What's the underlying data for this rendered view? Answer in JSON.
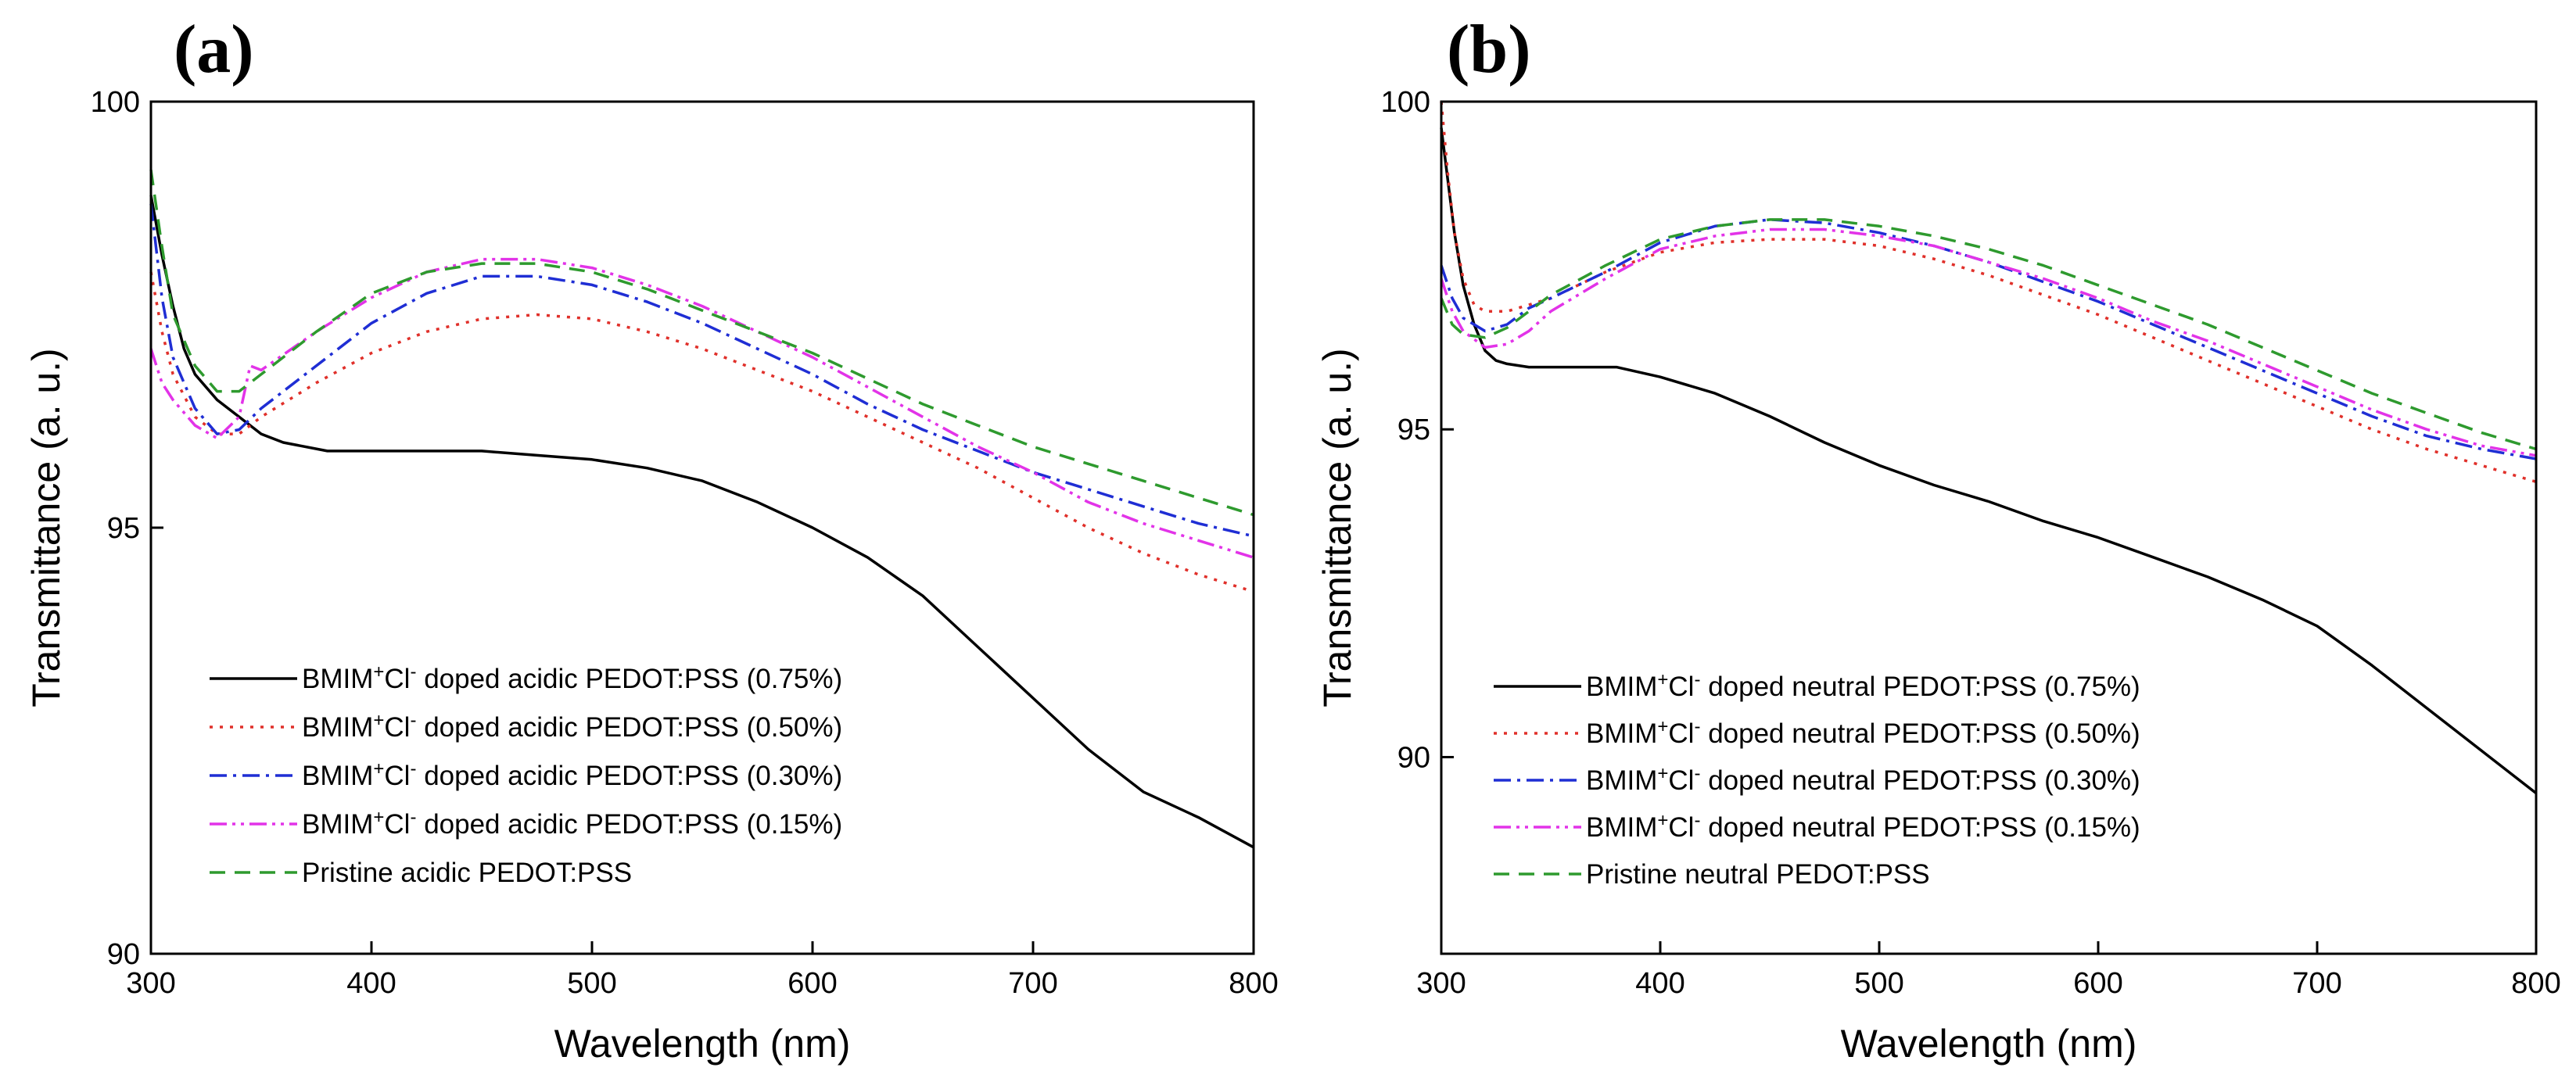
{
  "chart_data": [
    {
      "type": "line",
      "panel_label": "(a)",
      "xlabel": "Wavelength (nm)",
      "ylabel": "Transmittance (a. u.)",
      "xlim": [
        300,
        800
      ],
      "ylim": [
        90,
        100
      ],
      "x_ticks": [
        300,
        400,
        500,
        600,
        700,
        800
      ],
      "y_ticks": [
        90,
        95,
        100
      ],
      "legend_position": "lower-left",
      "series": [
        {
          "name": "BMIM+Cl- doped acidic PEDOT:PSS (0.75%)",
          "legend": {
            "prefix": "BMIM",
            "sup1": "+",
            "mid": "Cl",
            "sup2": "-",
            "suffix": " doped acidic PEDOT:PSS (0.75%)"
          },
          "color": "#000000",
          "dash": "solid",
          "x": [
            300,
            305,
            310,
            315,
            320,
            330,
            340,
            350,
            360,
            380,
            400,
            425,
            450,
            475,
            500,
            525,
            550,
            575,
            600,
            625,
            650,
            675,
            700,
            725,
            750,
            775,
            800
          ],
          "y": [
            98.9,
            98.2,
            97.6,
            97.1,
            96.8,
            96.5,
            96.3,
            96.1,
            96.0,
            95.9,
            95.9,
            95.9,
            95.9,
            95.85,
            95.8,
            95.7,
            95.55,
            95.3,
            95.0,
            94.65,
            94.2,
            93.6,
            93.0,
            92.4,
            91.9,
            91.6,
            91.25
          ]
        },
        {
          "name": "BMIM+Cl- doped acidic PEDOT:PSS (0.50%)",
          "legend": {
            "prefix": "BMIM",
            "sup1": "+",
            "mid": "Cl",
            "sup2": "-",
            "suffix": " doped acidic PEDOT:PSS (0.50%)"
          },
          "color": "#e0302a",
          "dash": "dotted",
          "x": [
            300,
            305,
            310,
            320,
            330,
            340,
            350,
            375,
            400,
            425,
            450,
            475,
            500,
            525,
            550,
            575,
            600,
            625,
            650,
            675,
            700,
            725,
            750,
            775,
            800
          ],
          "y": [
            98.0,
            97.3,
            96.8,
            96.3,
            96.1,
            96.1,
            96.3,
            96.7,
            97.05,
            97.3,
            97.45,
            97.5,
            97.45,
            97.3,
            97.1,
            96.85,
            96.6,
            96.3,
            96.0,
            95.7,
            95.35,
            95.0,
            94.7,
            94.45,
            94.25
          ]
        },
        {
          "name": "BMIM+Cl- doped acidic PEDOT:PSS (0.30%)",
          "legend": {
            "prefix": "BMIM",
            "sup1": "+",
            "mid": "Cl",
            "sup2": "-",
            "suffix": " doped acidic PEDOT:PSS (0.30%)"
          },
          "color": "#1f2ed4",
          "dash": "dashdot",
          "x": [
            300,
            305,
            310,
            320,
            330,
            340,
            350,
            375,
            400,
            425,
            450,
            475,
            500,
            525,
            550,
            575,
            600,
            625,
            650,
            675,
            700,
            725,
            750,
            775,
            800
          ],
          "y": [
            98.8,
            97.7,
            97.0,
            96.4,
            96.1,
            96.15,
            96.4,
            96.9,
            97.4,
            97.75,
            97.95,
            97.95,
            97.85,
            97.65,
            97.4,
            97.1,
            96.8,
            96.45,
            96.15,
            95.9,
            95.65,
            95.45,
            95.25,
            95.05,
            94.9
          ]
        },
        {
          "name": "BMIM+Cl- doped acidic PEDOT:PSS (0.15%)",
          "legend": {
            "prefix": "BMIM",
            "sup1": "+",
            "mid": "Cl",
            "sup2": "-",
            "suffix": " doped acidic PEDOT:PSS (0.15%)"
          },
          "color": "#e233e8",
          "dash": "dashdotdot",
          "x": [
            300,
            305,
            310,
            320,
            330,
            340,
            345,
            350,
            375,
            400,
            425,
            450,
            475,
            500,
            525,
            550,
            575,
            600,
            625,
            650,
            675,
            700,
            725,
            750,
            775,
            800
          ],
          "y": [
            97.1,
            96.7,
            96.5,
            96.2,
            96.05,
            96.3,
            96.9,
            96.85,
            97.3,
            97.7,
            98.0,
            98.15,
            98.15,
            98.05,
            97.85,
            97.6,
            97.3,
            97.0,
            96.65,
            96.3,
            95.95,
            95.65,
            95.3,
            95.05,
            94.85,
            94.65
          ]
        },
        {
          "name": "Pristine acidic PEDOT:PSS",
          "legend": {
            "prefix": "Pristine acidic PEDOT:PSS",
            "sup1": "",
            "mid": "",
            "sup2": "",
            "suffix": ""
          },
          "color": "#2e9a2e",
          "dash": "dashed",
          "x": [
            300,
            305,
            310,
            320,
            330,
            340,
            350,
            375,
            400,
            425,
            450,
            475,
            500,
            525,
            550,
            575,
            600,
            625,
            650,
            675,
            700,
            725,
            750,
            775,
            800
          ],
          "y": [
            99.2,
            98.3,
            97.5,
            96.9,
            96.6,
            96.6,
            96.8,
            97.3,
            97.75,
            98.0,
            98.1,
            98.1,
            98.0,
            97.8,
            97.55,
            97.3,
            97.05,
            96.75,
            96.45,
            96.2,
            95.95,
            95.75,
            95.55,
            95.35,
            95.15
          ]
        }
      ]
    },
    {
      "type": "line",
      "panel_label": "(b)",
      "xlabel": "Wavelength (nm)",
      "ylabel": "Transmittance (a. u.)",
      "xlim": [
        300,
        800
      ],
      "ylim": [
        87,
        100
      ],
      "x_ticks": [
        300,
        400,
        500,
        600,
        700,
        800
      ],
      "y_ticks": [
        90,
        95,
        100
      ],
      "legend_position": "lower-left",
      "series": [
        {
          "name": "BMIM+Cl- doped neutral PEDOT:PSS (0.75%)",
          "legend": {
            "prefix": "BMIM",
            "sup1": "+",
            "mid": "Cl",
            "sup2": "-",
            "suffix": " doped neutral PEDOT:PSS (0.75%)"
          },
          "color": "#000000",
          "dash": "solid",
          "x": [
            300,
            303,
            306,
            310,
            315,
            320,
            325,
            330,
            340,
            360,
            380,
            400,
            425,
            450,
            475,
            500,
            525,
            550,
            575,
            600,
            625,
            650,
            675,
            700,
            725,
            750,
            775,
            800
          ],
          "y": [
            99.6,
            98.8,
            98.0,
            97.2,
            96.6,
            96.2,
            96.05,
            96.0,
            95.95,
            95.95,
            95.95,
            95.8,
            95.55,
            95.2,
            94.8,
            94.45,
            94.15,
            93.9,
            93.6,
            93.35,
            93.05,
            92.75,
            92.4,
            92.0,
            91.4,
            90.75,
            90.1,
            89.45
          ]
        },
        {
          "name": "BMIM+Cl- doped neutral PEDOT:PSS (0.50%)",
          "legend": {
            "prefix": "BMIM",
            "sup1": "+",
            "mid": "Cl",
            "sup2": "-",
            "suffix": " doped neutral PEDOT:PSS (0.50%)"
          },
          "color": "#e0302a",
          "dash": "dotted",
          "x": [
            300,
            303,
            306,
            310,
            315,
            320,
            330,
            340,
            350,
            375,
            400,
            425,
            450,
            475,
            500,
            525,
            550,
            575,
            600,
            625,
            650,
            675,
            700,
            725,
            750,
            775,
            800
          ],
          "y": [
            100.0,
            98.9,
            98.0,
            97.3,
            96.9,
            96.8,
            96.8,
            96.9,
            97.0,
            97.4,
            97.7,
            97.85,
            97.9,
            97.9,
            97.8,
            97.6,
            97.35,
            97.05,
            96.75,
            96.4,
            96.05,
            95.7,
            95.35,
            95.0,
            94.7,
            94.45,
            94.2
          ]
        },
        {
          "name": "BMIM+Cl- doped neutral PEDOT:PSS (0.30%)",
          "legend": {
            "prefix": "BMIM",
            "sup1": "+",
            "mid": "Cl",
            "sup2": "-",
            "suffix": " doped neutral PEDOT:PSS (0.30%)"
          },
          "color": "#1f2ed4",
          "dash": "dashdot",
          "x": [
            300,
            305,
            310,
            320,
            330,
            340,
            350,
            375,
            400,
            425,
            450,
            475,
            500,
            525,
            550,
            575,
            600,
            625,
            650,
            675,
            700,
            725,
            750,
            775,
            800
          ],
          "y": [
            97.5,
            97.0,
            96.7,
            96.5,
            96.6,
            96.85,
            97.0,
            97.4,
            97.85,
            98.1,
            98.2,
            98.15,
            98.0,
            97.8,
            97.55,
            97.25,
            96.95,
            96.6,
            96.25,
            95.9,
            95.55,
            95.2,
            94.9,
            94.7,
            94.55
          ]
        },
        {
          "name": "BMIM+Cl- doped neutral PEDOT:PSS (0.15%)",
          "legend": {
            "prefix": "BMIM",
            "sup1": "+",
            "mid": "Cl",
            "sup2": "-",
            "suffix": " doped neutral PEDOT:PSS (0.15%)"
          },
          "color": "#e233e8",
          "dash": "dashdotdot",
          "x": [
            300,
            305,
            310,
            320,
            330,
            340,
            350,
            375,
            400,
            425,
            450,
            475,
            500,
            525,
            550,
            575,
            600,
            625,
            650,
            675,
            700,
            725,
            750,
            775,
            800
          ],
          "y": [
            97.3,
            96.8,
            96.5,
            96.25,
            96.3,
            96.5,
            96.8,
            97.3,
            97.75,
            97.95,
            98.05,
            98.05,
            97.95,
            97.8,
            97.55,
            97.3,
            97.0,
            96.65,
            96.35,
            96.0,
            95.65,
            95.3,
            95.0,
            94.75,
            94.6
          ]
        },
        {
          "name": "Pristine neutral PEDOT:PSS",
          "legend": {
            "prefix": "Pristine neutral PEDOT:PSS",
            "sup1": "",
            "mid": "",
            "sup2": "",
            "suffix": ""
          },
          "color": "#2e9a2e",
          "dash": "dashed",
          "x": [
            300,
            305,
            310,
            320,
            330,
            340,
            350,
            375,
            400,
            425,
            450,
            475,
            500,
            525,
            550,
            575,
            600,
            625,
            650,
            675,
            700,
            725,
            750,
            775,
            800
          ],
          "y": [
            97.0,
            96.6,
            96.45,
            96.4,
            96.55,
            96.8,
            97.05,
            97.5,
            97.9,
            98.1,
            98.2,
            98.2,
            98.1,
            97.95,
            97.75,
            97.5,
            97.2,
            96.9,
            96.6,
            96.25,
            95.9,
            95.55,
            95.25,
            94.95,
            94.7
          ]
        }
      ]
    }
  ]
}
